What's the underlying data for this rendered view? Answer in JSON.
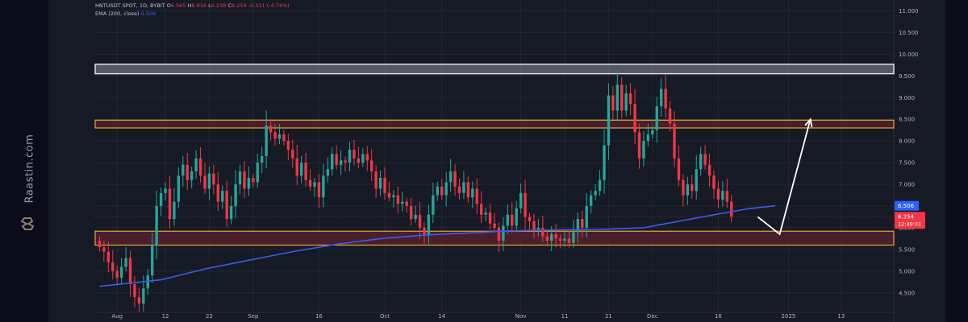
{
  "brand": {
    "name": "Raastin.com",
    "logo": "raastin-logo-icon"
  },
  "legend": {
    "symbol": "HNTUSDT SPOT, 1D, BYBIT",
    "o_label": "O",
    "o": "6.565",
    "h_label": "H",
    "h": "6.816",
    "l_label": "L",
    "l": "6.238",
    "c_label": "C",
    "c": "6.254",
    "change": "-0.311 (-4.74%)",
    "ema_label": "EMA (200, close)",
    "ema_value": "6.506"
  },
  "price_tags": {
    "ema": {
      "value": "6.506",
      "color": "#2962ff"
    },
    "last": {
      "value": "6.254",
      "countdown": "12:49:01",
      "color": "#f23645"
    }
  },
  "colors": {
    "up": "#26a69a",
    "down": "#f23645",
    "ema": "#3c5be8",
    "zone_border": "#e6a92e",
    "top_zone": "#e8e8ee",
    "arrow": "#ffffff"
  },
  "chart_data": {
    "type": "candlestick",
    "y_ticks": [
      "11.000",
      "10.500",
      "10.000",
      "9.500",
      "9.000",
      "8.500",
      "8.000",
      "7.500",
      "7.000",
      "6.500",
      "6.000",
      "5.500",
      "5.000",
      "4.500"
    ],
    "ylim": [
      4.05,
      11.25
    ],
    "x_ticks": [
      {
        "label": "Aug",
        "day": 0
      },
      {
        "label": "12",
        "day": 11
      },
      {
        "label": "22",
        "day": 21
      },
      {
        "label": "Sep",
        "day": 31
      },
      {
        "label": "16",
        "day": 46
      },
      {
        "label": "Oct",
        "day": 61
      },
      {
        "label": "14",
        "day": 74
      },
      {
        "label": "Nov",
        "day": 92
      },
      {
        "label": "11",
        "day": 102
      },
      {
        "label": "21",
        "day": 112
      },
      {
        "label": "Dec",
        "day": 122
      },
      {
        "label": "16",
        "day": 137
      },
      {
        "label": "2025",
        "day": 153
      },
      {
        "label": "13",
        "day": 165
      }
    ],
    "start_day": -4,
    "closes": [
      5.55,
      5.45,
      5.2,
      5.0,
      4.85,
      5.1,
      5.3,
      4.7,
      4.4,
      4.25,
      4.6,
      4.9,
      5.6,
      6.5,
      6.8,
      6.9,
      6.2,
      6.6,
      7.2,
      7.45,
      7.1,
      7.3,
      7.6,
      7.2,
      6.9,
      7.25,
      7.0,
      6.6,
      6.85,
      6.2,
      6.5,
      7.0,
      7.3,
      6.9,
      7.15,
      7.05,
      7.5,
      7.65,
      8.35,
      8.2,
      8.05,
      8.15,
      8.0,
      7.8,
      7.6,
      7.2,
      7.5,
      7.1,
      6.95,
      7.05,
      6.7,
      7.2,
      7.35,
      7.7,
      7.45,
      7.55,
      7.5,
      7.8,
      7.6,
      7.5,
      7.7,
      7.55,
      7.3,
      6.9,
      7.15,
      6.8,
      6.7,
      6.75,
      6.55,
      6.6,
      6.5,
      6.2,
      6.3,
      6.0,
      5.85,
      6.3,
      6.75,
      6.95,
      6.75,
      7.05,
      7.3,
      6.95,
      6.8,
      7.05,
      6.7,
      6.9,
      6.55,
      6.3,
      6.35,
      6.1,
      6.0,
      5.7,
      6.05,
      6.3,
      6.05,
      6.45,
      6.8,
      6.25,
      6.15,
      5.95,
      6.0,
      5.8,
      5.7,
      5.85,
      5.75,
      5.7,
      5.75,
      5.65,
      5.9,
      6.2,
      6.0,
      6.5,
      6.75,
      6.85,
      7.1,
      7.9,
      9.05,
      8.7,
      9.3,
      8.7,
      9.1,
      8.85,
      8.2,
      7.6,
      8.0,
      8.15,
      8.25,
      8.8,
      9.2,
      8.75,
      8.4,
      7.6,
      7.1,
      6.75,
      7.0,
      6.85,
      7.35,
      7.7,
      7.45,
      7.2,
      6.9,
      6.65,
      6.85,
      6.6,
      6.254
    ],
    "ema": [
      [
        -4,
        4.65
      ],
      [
        10,
        4.8
      ],
      [
        20,
        5.05
      ],
      [
        30,
        5.25
      ],
      [
        40,
        5.45
      ],
      [
        50,
        5.62
      ],
      [
        60,
        5.75
      ],
      [
        70,
        5.83
      ],
      [
        80,
        5.88
      ],
      [
        90,
        5.93
      ],
      [
        100,
        5.95
      ],
      [
        110,
        5.96
      ],
      [
        120,
        6.0
      ],
      [
        128,
        6.15
      ],
      [
        136,
        6.3
      ],
      [
        144,
        6.44
      ],
      [
        150,
        6.506
      ]
    ],
    "zones": [
      {
        "from": 9.55,
        "to": 9.77,
        "kind": "top"
      },
      {
        "from": 8.3,
        "to": 8.48,
        "kind": "mid"
      },
      {
        "from": 5.6,
        "to": 5.92,
        "kind": "low"
      }
    ],
    "arrow": [
      [
        146,
        6.25
      ],
      [
        151,
        5.85
      ],
      [
        158,
        8.5
      ]
    ]
  }
}
